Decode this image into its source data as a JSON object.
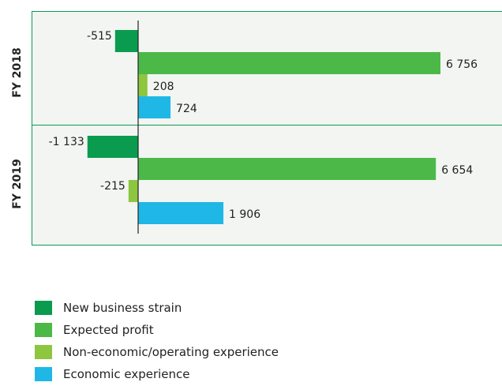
{
  "chart_data": {
    "type": "bar",
    "orientation": "horizontal",
    "groups": [
      "FY 2018",
      "FY 2019"
    ],
    "series": [
      {
        "name": "New business strain",
        "color": "#0a9b4f",
        "values": [
          -515,
          -1133
        ],
        "labels": [
          "-515",
          "-1 133"
        ]
      },
      {
        "name": "Expected profit",
        "color": "#4cb848",
        "values": [
          6756,
          6654
        ],
        "labels": [
          "6 756",
          "6 654"
        ]
      },
      {
        "name": "Non-economic/operating experience",
        "color": "#8dc63f",
        "values": [
          208,
          -215
        ],
        "labels": [
          "208",
          "-215"
        ]
      },
      {
        "name": "Economic experience",
        "color": "#1fb8e6",
        "values": [
          724,
          1906
        ],
        "labels": [
          "724",
          "1 906"
        ]
      }
    ],
    "panel_background": "#f2f5f2",
    "panel_border": "#0a9b4f",
    "grid": false,
    "legend_position": "bottom-left"
  }
}
